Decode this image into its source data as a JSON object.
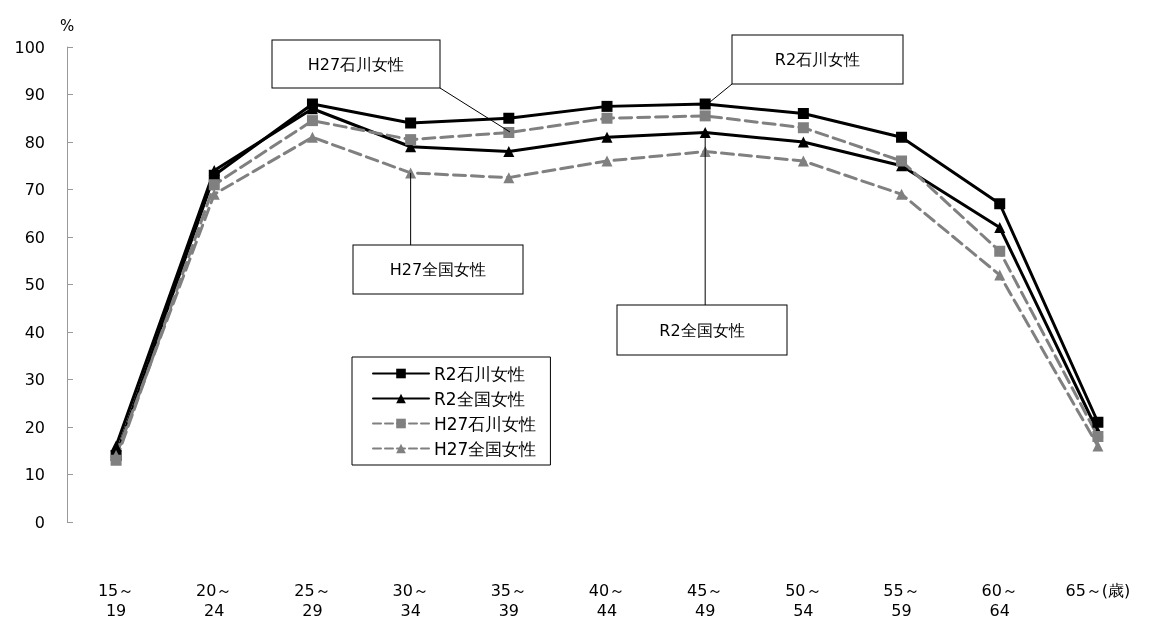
{
  "chart_data": {
    "type": "line",
    "ylabel": "%",
    "categories": [
      "15～\n19",
      "20～\n24",
      "25～\n29",
      "30～\n34",
      "35～\n39",
      "40～\n44",
      "45～\n49",
      "50～\n54",
      "55～\n59",
      "60～\n64",
      "65～(歳)"
    ],
    "series": [
      {
        "name": "R2石川女性",
        "color": "#000000",
        "marker": "square",
        "line_style": "solid",
        "values": [
          14,
          73,
          88,
          84,
          85,
          87.5,
          88,
          86,
          81,
          67,
          21
        ]
      },
      {
        "name": "R2全国女性",
        "color": "#000000",
        "marker": "triangle",
        "line_style": "solid",
        "values": [
          16,
          74,
          87,
          79,
          78,
          81,
          82,
          80,
          75,
          62,
          19
        ]
      },
      {
        "name": "H27石川女性",
        "color": "#808080",
        "marker": "square",
        "line_style": "dashed",
        "values": [
          13,
          71,
          84.5,
          80.5,
          82,
          85,
          85.5,
          83,
          76,
          57,
          18
        ]
      },
      {
        "name": "H27全国女性",
        "color": "#808080",
        "marker": "triangle",
        "line_style": "dashed",
        "values": [
          14,
          69,
          81,
          73.5,
          72.5,
          76,
          78,
          76,
          69,
          52,
          16
        ]
      }
    ],
    "ylim": [
      0,
      100
    ],
    "yticks": [
      0,
      10,
      20,
      30,
      40,
      50,
      60,
      70,
      80,
      90,
      100
    ],
    "grid": false,
    "legend": "center",
    "annotations": [
      "H27石川女性",
      "R2石川女性",
      {
        "text": "H27全国女性",
        "x": "30～\n34",
        "y": 73.5
      },
      {
        "text": "R2全国女性",
        "x": "45～\n49",
        "y": 82
      }
    ]
  }
}
